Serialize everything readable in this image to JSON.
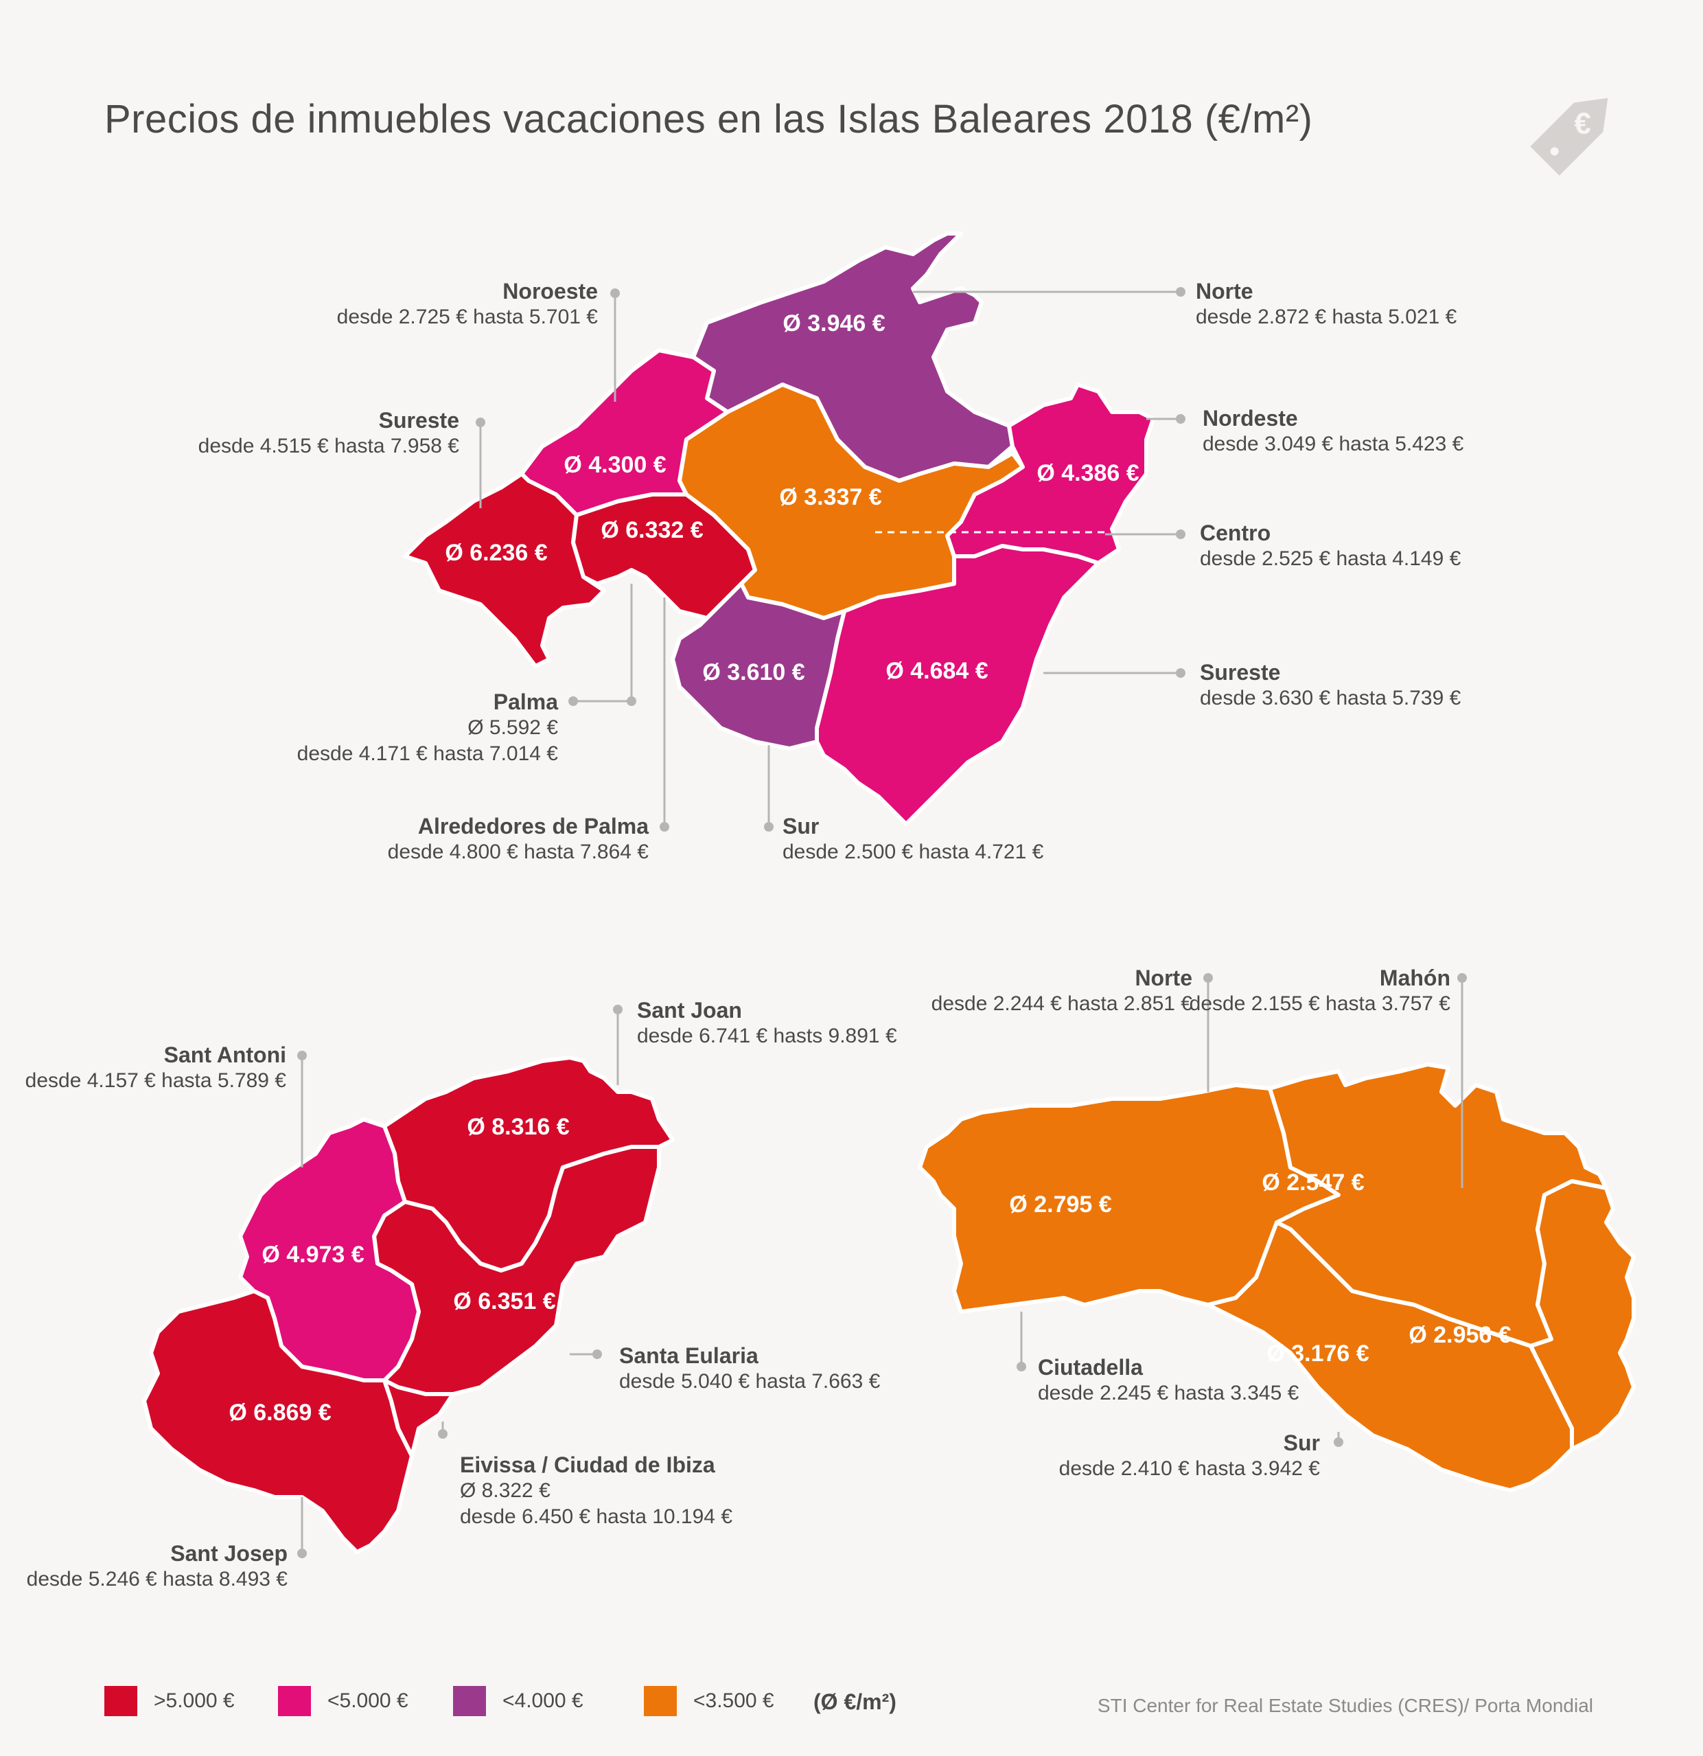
{
  "title": "Precios de inmuebles vacaciones en las Islas Baleares 2018 (€/m²)",
  "colors": {
    ">5000": "#d50a2a",
    "<5000": "#e20f78",
    "<4000": "#9b3a8c",
    "<3500": "#ec760a",
    "border": "#ffffff"
  },
  "mallorca": {
    "noroeste": {
      "name": "Noroeste",
      "range": "desde 2.725 € hasta 5.701 €",
      "avg": "Ø 4.300 €"
    },
    "norte": {
      "name": "Norte",
      "range": "desde 2.872 € hasta 5.021 €",
      "avg": "Ø 3.946 €"
    },
    "sureste_w": {
      "name": "Sureste",
      "range": "desde  4.515 € hasta 7.958 €",
      "avg": "Ø 6.236 €"
    },
    "nordeste": {
      "name": "Nordeste",
      "range": "desde 3.049 € hasta 5.423 €",
      "avg": "Ø 4.386 €"
    },
    "centro": {
      "name": "Centro",
      "range": "desde 2.525 € hasta 4.149 €",
      "avg": "Ø 3.337 €"
    },
    "sureste_e": {
      "name": "Sureste",
      "range": "desde 3.630 € hasta 5.739 €",
      "avg": "Ø 4.684 €"
    },
    "palma": {
      "name": "Palma",
      "avg_line": "Ø 5.592 €",
      "range": "desde 4.171 € hasta 7.014 €"
    },
    "alrededores": {
      "name": "Alrededores de Palma",
      "range": "desde 4.800 € hasta 7.864 €",
      "avg": "Ø 6.332 €"
    },
    "sur": {
      "name": "Sur",
      "range": "desde 2.500 € hasta 4.721 €",
      "avg": "Ø 3.610 €"
    }
  },
  "ibiza": {
    "sant_joan": {
      "name": "Sant Joan",
      "range": "desde 6.741 € hasts 9.891 €",
      "avg": "Ø 8.316 €"
    },
    "sant_antoni": {
      "name": "Sant Antoni",
      "range": "desde 4.157 € hasta 5.789 €",
      "avg": "Ø 4.973 €"
    },
    "santa_eularia": {
      "name": "Santa Eularia",
      "range": "desde  5.040 € hasta 7.663 €",
      "avg": "Ø 6.351 €"
    },
    "eivissa": {
      "name": "Eivissa / Ciudad de Ibiza",
      "avg_line": "Ø 8.322 €",
      "range": "desde  6.450 € hasta 10.194 €"
    },
    "sant_josep": {
      "name": "Sant Josep",
      "range": "desde 5.246 € hasta 8.493 €",
      "avg": "Ø 6.869 €"
    }
  },
  "menorca": {
    "norte": {
      "name": "Norte",
      "range": "desde 2.244 € hasta 2.851 €",
      "avg": "Ø 2.547 €"
    },
    "mahon": {
      "name": "Mahón",
      "range": "desde 2.155 € hasta 3.757 €",
      "avg": "Ø 2.956 €"
    },
    "ciutadella": {
      "name": "Ciutadella",
      "range": "desde 2.245 € hasta 3.345 €",
      "avg": "Ø 2.795 €"
    },
    "sur": {
      "name": "Sur",
      "range": "desde 2.410 € hasta 3.942 €",
      "avg": "Ø 3.176 €"
    }
  },
  "legend": [
    {
      "label": ">5.000 €",
      "color": "#d50a2a"
    },
    {
      "label": "<5.000 €",
      "color": "#e20f78"
    },
    {
      "label": "<4.000 €",
      "color": "#9b3a8c"
    },
    {
      "label": "<3.500 €",
      "color": "#ec760a"
    }
  ],
  "unit": "(Ø €/m²)",
  "source": "STI Center for Real Estate Studies (CRES)/ Porta Mondial"
}
